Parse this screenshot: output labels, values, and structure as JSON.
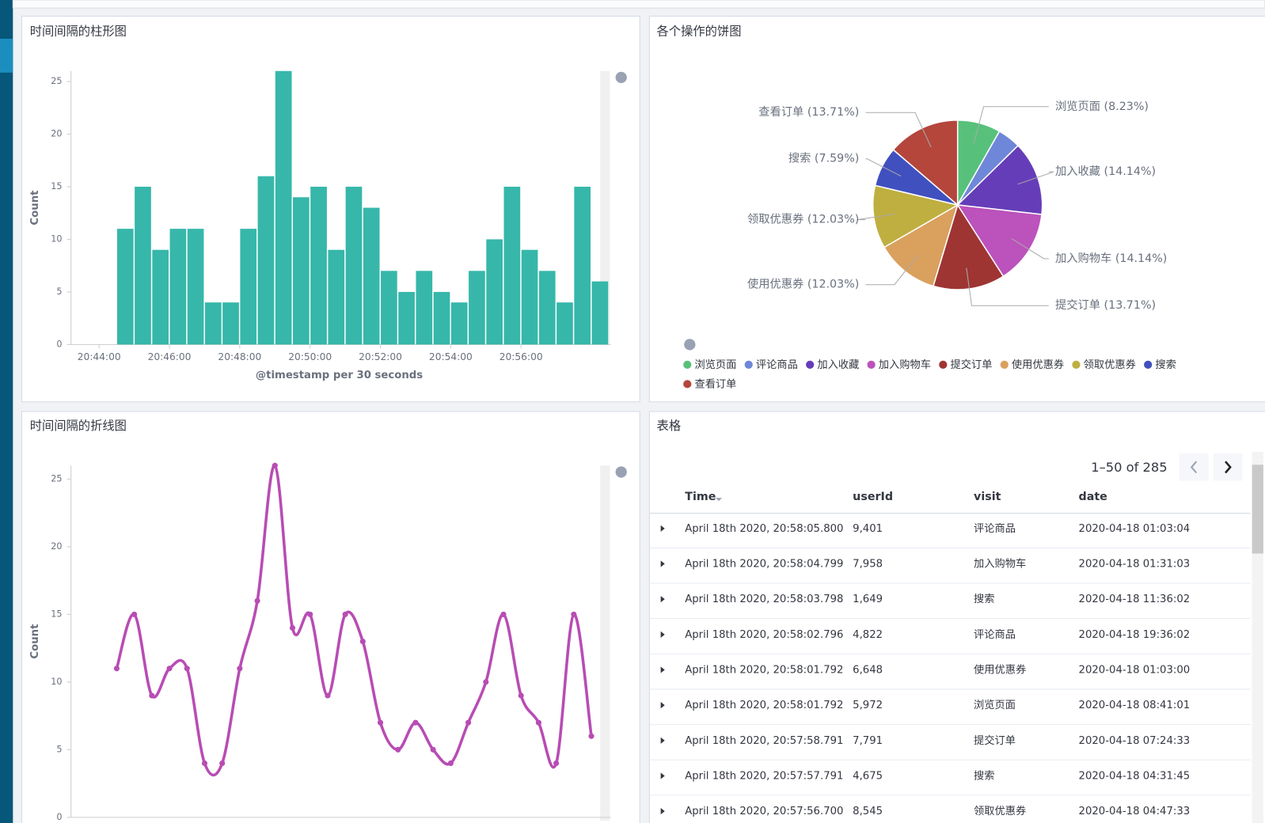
{
  "chart_data": [
    {
      "type": "bar",
      "title": "时间间隔的柱形图",
      "ylabel": "Count",
      "xlabel": "@timestamp per 30 seconds",
      "color": "#36b7aa",
      "x": [
        "20:44:30",
        "20:45:00",
        "20:45:30",
        "20:46:00",
        "20:46:30",
        "20:47:00",
        "20:47:30",
        "20:48:00",
        "20:48:30",
        "20:49:00",
        "20:49:30",
        "20:50:00",
        "20:50:30",
        "20:51:00",
        "20:51:30",
        "20:52:00",
        "20:52:30",
        "20:53:00",
        "20:53:30",
        "20:54:00",
        "20:54:30",
        "20:55:00",
        "20:55:30",
        "20:56:00",
        "20:56:30",
        "20:57:00",
        "20:57:30",
        "20:58:00"
      ],
      "values": [
        11,
        15,
        9,
        11,
        11,
        4,
        4,
        11,
        16,
        26,
        14,
        15,
        9,
        15,
        13,
        7,
        5,
        7,
        5,
        4,
        7,
        10,
        15,
        9,
        7,
        4,
        15,
        6
      ],
      "xlim": [
        "20:43:12",
        "20:58:33"
      ],
      "xticks": [
        "20:44:00",
        "20:46:00",
        "20:48:00",
        "20:50:00",
        "20:52:00",
        "20:54:00",
        "20:56:00"
      ],
      "ylim": [
        0,
        26
      ],
      "yticks": [
        0,
        5,
        10,
        15,
        20,
        25
      ]
    },
    {
      "type": "pie",
      "title": "各个操作的饼图",
      "categories": [
        "浏览页面",
        "评论商品",
        "加入收藏",
        "加入购物车",
        "提交订单",
        "使用优惠券",
        "领取优惠券",
        "搜索",
        "查看订单"
      ],
      "values": [
        8.23,
        4.42,
        14.14,
        14.14,
        13.71,
        12.03,
        12.03,
        7.59,
        13.71
      ],
      "value_labels": [
        "浏览页面 (8.23%)",
        null,
        "加入收藏 (14.14%)",
        "加入购物车 (14.14%)",
        "提交订单 (13.71%)",
        "使用优惠券 (12.03%)",
        "领取优惠券 (12.03%)",
        "搜索 (7.59%)",
        "查看订单 (13.71%)"
      ],
      "colors": [
        "#57c17b",
        "#6f87d8",
        "#663db8",
        "#bc52bc",
        "#9e3533",
        "#daa05d",
        "#bfaf40",
        "#4050bf",
        "#b4463c"
      ]
    },
    {
      "type": "line",
      "title": "时间间隔的折线图",
      "ylabel": "Count",
      "color": "#b84cb4",
      "x": [
        "20:44:30",
        "20:45:00",
        "20:45:30",
        "20:46:00",
        "20:46:30",
        "20:47:00",
        "20:47:30",
        "20:48:00",
        "20:48:30",
        "20:49:00",
        "20:49:30",
        "20:50:00",
        "20:50:30",
        "20:51:00",
        "20:51:30",
        "20:52:00",
        "20:52:30",
        "20:53:00",
        "20:53:30",
        "20:54:00",
        "20:54:30",
        "20:55:00",
        "20:55:30",
        "20:56:00",
        "20:56:30",
        "20:57:00",
        "20:57:30",
        "20:58:00"
      ],
      "values": [
        11,
        15,
        9,
        11,
        11,
        4,
        4,
        11,
        16,
        26,
        14,
        15,
        9,
        15,
        13,
        7,
        5,
        7,
        5,
        4,
        7,
        10,
        15,
        9,
        7,
        4,
        15,
        6
      ],
      "xlim": [
        "20:43:12",
        "20:58:33"
      ],
      "ylim": [
        0,
        26
      ],
      "yticks": [
        0,
        5,
        10,
        15,
        20,
        25
      ]
    }
  ],
  "table": {
    "title": "表格",
    "pagination": "1–50 of 285",
    "columns": [
      "Time",
      "userId",
      "visit",
      "date"
    ],
    "rows": [
      [
        "April 18th 2020, 20:58:05.800",
        "9,401",
        "评论商品",
        "2020-04-18 01:03:04"
      ],
      [
        "April 18th 2020, 20:58:04.799",
        "7,958",
        "加入购物车",
        "2020-04-18 01:31:03"
      ],
      [
        "April 18th 2020, 20:58:03.798",
        "1,649",
        "搜索",
        "2020-04-18 11:36:02"
      ],
      [
        "April 18th 2020, 20:58:02.796",
        "4,822",
        "评论商品",
        "2020-04-18 19:36:02"
      ],
      [
        "April 18th 2020, 20:58:01.792",
        "6,648",
        "使用优惠券",
        "2020-04-18 01:03:00"
      ],
      [
        "April 18th 2020, 20:58:01.792",
        "5,972",
        "浏览页面",
        "2020-04-18 08:41:01"
      ],
      [
        "April 18th 2020, 20:57:58.791",
        "7,791",
        "提交订单",
        "2020-04-18 07:24:33"
      ],
      [
        "April 18th 2020, 20:57:57.791",
        "4,675",
        "搜索",
        "2020-04-18 04:31:45"
      ],
      [
        "April 18th 2020, 20:57:56.700",
        "8,545",
        "领取优惠券",
        "2020-04-18 04:47:33"
      ]
    ]
  }
}
